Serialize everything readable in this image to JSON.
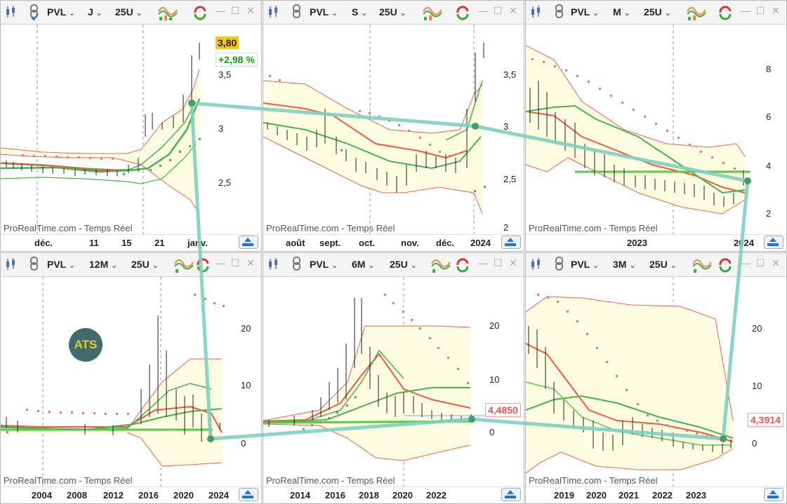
{
  "panels": [
    {
      "symbol": "PVL",
      "period": "J",
      "setting": "25U",
      "watermark": "ProRealTime.com - Temps Réel",
      "x_ticks": [
        "déc.",
        "11",
        "15",
        "21",
        "janv."
      ],
      "y_ticks": [
        "3,5",
        "3",
        "2,5"
      ],
      "price": "3,80",
      "change": "+2,98 %"
    },
    {
      "symbol": "PVL",
      "period": "S",
      "setting": "25U",
      "watermark": "ProRealTime.com - Temps Réel",
      "x_ticks": [
        "août",
        "sept.",
        "oct.",
        "nov.",
        "déc.",
        "2024"
      ],
      "y_ticks": [
        "3,5",
        "3",
        "2,5",
        "2"
      ]
    },
    {
      "symbol": "PVL",
      "period": "M",
      "setting": "25U",
      "watermark": "ProRealTime.com - Temps Réel",
      "x_ticks": [
        "2023",
        "2024"
      ],
      "y_ticks": [
        "8",
        "6",
        "4",
        "2"
      ]
    },
    {
      "symbol": "PVL",
      "period": "12M",
      "setting": "25U",
      "watermark": "ProRealTime.com - Temps Réel",
      "x_ticks": [
        "2004",
        "2008",
        "2012",
        "2016",
        "2020",
        "2024"
      ],
      "y_ticks": [
        "20",
        "10",
        "0"
      ],
      "logo": "ATS"
    },
    {
      "symbol": "PVL",
      "period": "6M",
      "setting": "25U",
      "watermark": "ProRealTime.com - Temps Réel",
      "x_ticks": [
        "2014",
        "2016",
        "2018",
        "2020",
        "2022"
      ],
      "y_ticks": [
        "20",
        "10",
        "0"
      ],
      "price": "4,4850"
    },
    {
      "symbol": "PVL",
      "period": "3M",
      "setting": "25U",
      "watermark": "ProRealTime.com - Temps Réel",
      "x_ticks": [
        "2019",
        "2020",
        "2021",
        "2022",
        "2023"
      ],
      "y_ticks": [
        "20",
        "10",
        "0"
      ],
      "price": "4,3914"
    }
  ],
  "colors": {
    "band_fill": "#fdfce0",
    "band_line": "#e8645a",
    "ma_red": "#ec5b45",
    "ma_green": "#4caf50",
    "sar_red": "#f0756a",
    "sar_green": "#4caf50",
    "trend": "#7ecfc0",
    "support": "#5ac84a",
    "price_red": "#f05050",
    "price_yellow": "#f5c518"
  }
}
